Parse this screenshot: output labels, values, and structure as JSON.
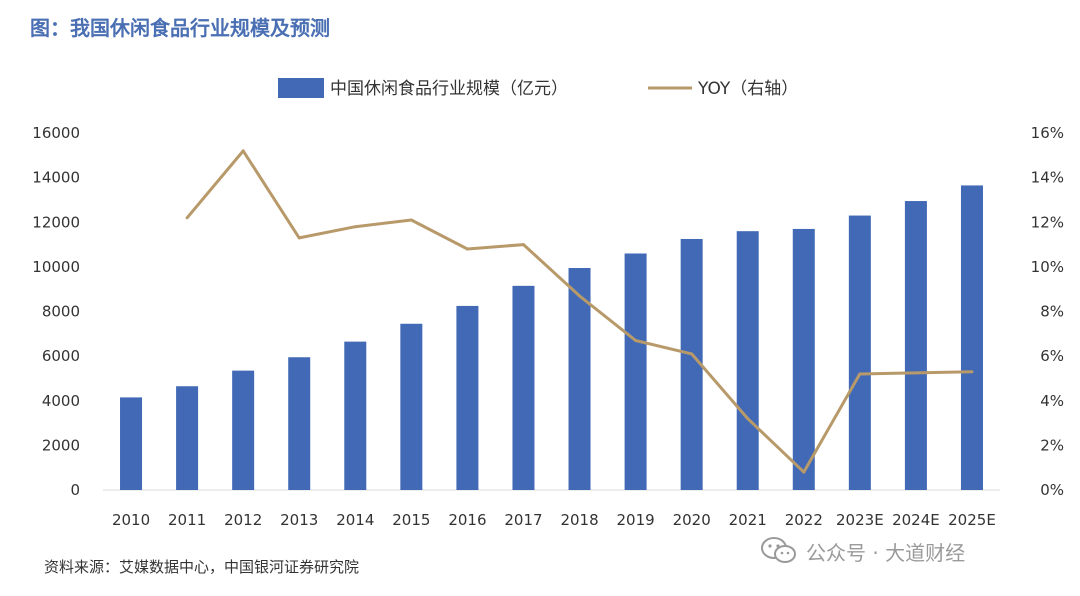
{
  "figure_title": "图：我国休闲食品行业规模及预测",
  "source": "资料来源：艾媒数据中心，中国银河证券研究院",
  "watermark": "公众号 · 大道财经",
  "chart_data": {
    "type": "bar",
    "categories": [
      "2010",
      "2011",
      "2012",
      "2013",
      "2014",
      "2015",
      "2016",
      "2017",
      "2018",
      "2019",
      "2020",
      "2021",
      "2022",
      "2023E",
      "2024E",
      "2025E"
    ],
    "series": [
      {
        "name": "中国休闲食品行业规模（亿元）",
        "kind": "bar",
        "axis": "left",
        "color": "#4169b5",
        "values": [
          4150,
          4650,
          5350,
          5950,
          6650,
          7450,
          8250,
          9150,
          9950,
          10600,
          11250,
          11600,
          11700,
          12300,
          12950,
          13650
        ]
      },
      {
        "name": "YOY（右轴）",
        "kind": "line",
        "axis": "right",
        "color": "#b89a6a",
        "values": [
          null,
          12.2,
          15.2,
          11.3,
          11.8,
          12.1,
          10.8,
          11.0,
          8.7,
          6.7,
          6.1,
          3.2,
          0.8,
          5.2,
          5.25,
          5.3
        ]
      }
    ],
    "y_left": {
      "min": 0,
      "max": 16000,
      "ticks": [
        "0",
        "2000",
        "4000",
        "6000",
        "8000",
        "10000",
        "12000",
        "14000",
        "16000"
      ]
    },
    "y_right": {
      "min": 0,
      "max": 16,
      "ticks": [
        "0%",
        "2%",
        "4%",
        "6%",
        "8%",
        "10%",
        "12%",
        "14%",
        "16%"
      ]
    },
    "legend_position": "top-center",
    "grid": false
  }
}
